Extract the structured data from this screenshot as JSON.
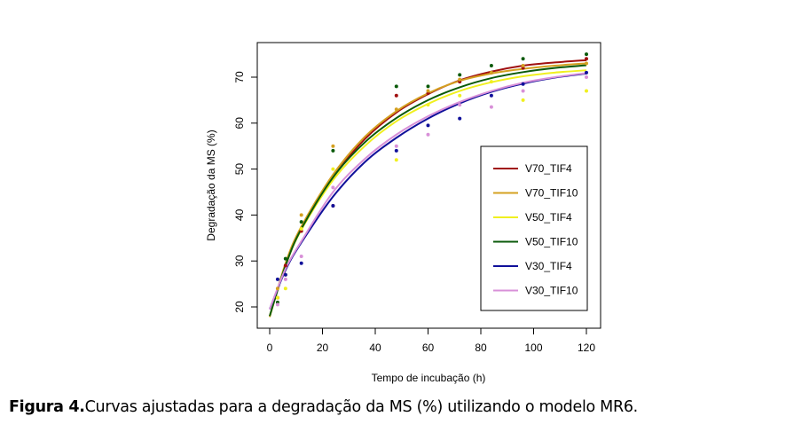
{
  "chart_data": {
    "type": "line",
    "title": "",
    "xlabel": "Tempo de incubação (h)",
    "ylabel": "Degradação da MS (%)",
    "xlim": [
      -4,
      124
    ],
    "ylim": [
      15.4,
      77.5
    ],
    "xticks": [
      0,
      20,
      40,
      60,
      80,
      100,
      120
    ],
    "yticks": [
      20,
      30,
      40,
      50,
      60,
      70
    ],
    "legend_position": "bottom-right inside",
    "x": [
      0,
      6,
      12,
      24,
      36,
      48,
      60,
      72,
      84,
      96,
      108,
      120
    ],
    "series": [
      {
        "name": "V70_TIF4",
        "color": "#a01010",
        "values": [
          18,
          29,
          37,
          48.2,
          56.5,
          62.3,
          66.3,
          69.3,
          71.2,
          72.5,
          73.2,
          73.7
        ],
        "points": [
          [
            3,
            22
          ],
          [
            6,
            29
          ],
          [
            12,
            36.5
          ],
          [
            24,
            42
          ],
          [
            48,
            66
          ],
          [
            60,
            66.5
          ],
          [
            72,
            69
          ],
          [
            84,
            71
          ],
          [
            96,
            72
          ],
          [
            120,
            74
          ]
        ]
      },
      {
        "name": "V70_TIF10",
        "color": "#d4a020",
        "values": [
          17.8,
          29.5,
          37.5,
          48.8,
          57,
          62.6,
          66.5,
          69.2,
          70.8,
          71.8,
          72.5,
          73.0
        ],
        "points": [
          [
            3,
            24
          ],
          [
            6,
            27
          ],
          [
            12,
            40
          ],
          [
            24,
            55
          ],
          [
            48,
            63
          ],
          [
            60,
            67
          ],
          [
            72,
            69.5
          ],
          [
            84,
            71
          ],
          [
            96,
            72.5
          ],
          [
            120,
            73
          ]
        ]
      },
      {
        "name": "V50_TIF4",
        "color": "#f0f020",
        "values": [
          18,
          29,
          36.8,
          47.6,
          55,
          60.4,
          64.2,
          67,
          68.9,
          70.2,
          71,
          71.5
        ],
        "points": [
          [
            3,
            22
          ],
          [
            6,
            24
          ],
          [
            12,
            37
          ],
          [
            24,
            50
          ],
          [
            48,
            52
          ],
          [
            60,
            64
          ],
          [
            72,
            66
          ],
          [
            84,
            69
          ],
          [
            96,
            65
          ],
          [
            120,
            67
          ]
        ]
      },
      {
        "name": "V50_TIF10",
        "color": "#0a5a0a",
        "values": [
          18,
          29,
          37,
          48.2,
          55.8,
          61.1,
          65,
          67.8,
          69.8,
          71.1,
          72,
          72.6
        ],
        "points": [
          [
            3,
            21
          ],
          [
            6,
            30.5
          ],
          [
            12,
            38.5
          ],
          [
            24,
            54
          ],
          [
            48,
            68
          ],
          [
            60,
            68
          ],
          [
            72,
            70.5
          ],
          [
            84,
            72.5
          ],
          [
            96,
            74
          ],
          [
            120,
            75
          ]
        ]
      },
      {
        "name": "V30_TIF4",
        "color": "#10109a",
        "values": [
          19.5,
          28,
          34,
          44,
          51.5,
          56.8,
          61,
          64.3,
          66.8,
          68.6,
          69.9,
          70.8
        ],
        "points": [
          [
            3,
            26
          ],
          [
            6,
            27
          ],
          [
            12,
            29.5
          ],
          [
            24,
            42
          ],
          [
            48,
            54
          ],
          [
            60,
            59.5
          ],
          [
            72,
            61
          ],
          [
            84,
            66
          ],
          [
            96,
            68.5
          ],
          [
            120,
            71
          ]
        ]
      },
      {
        "name": "V30_TIF10",
        "color": "#d890d8",
        "values": [
          19.5,
          28.3,
          34.3,
          45,
          52.2,
          57.5,
          61.5,
          64.6,
          67,
          68.8,
          70,
          70.9
        ],
        "points": [
          [
            3,
            20.5
          ],
          [
            6,
            26
          ],
          [
            12,
            31
          ],
          [
            24,
            46
          ],
          [
            48,
            55
          ],
          [
            60,
            57.5
          ],
          [
            72,
            64
          ],
          [
            84,
            63.5
          ],
          [
            96,
            67
          ],
          [
            120,
            70
          ]
        ]
      }
    ]
  },
  "caption": {
    "label": "Figura 4.",
    "text": "Curvas ajustadas para a degradação da MS (%) utilizando o modelo MR6."
  }
}
